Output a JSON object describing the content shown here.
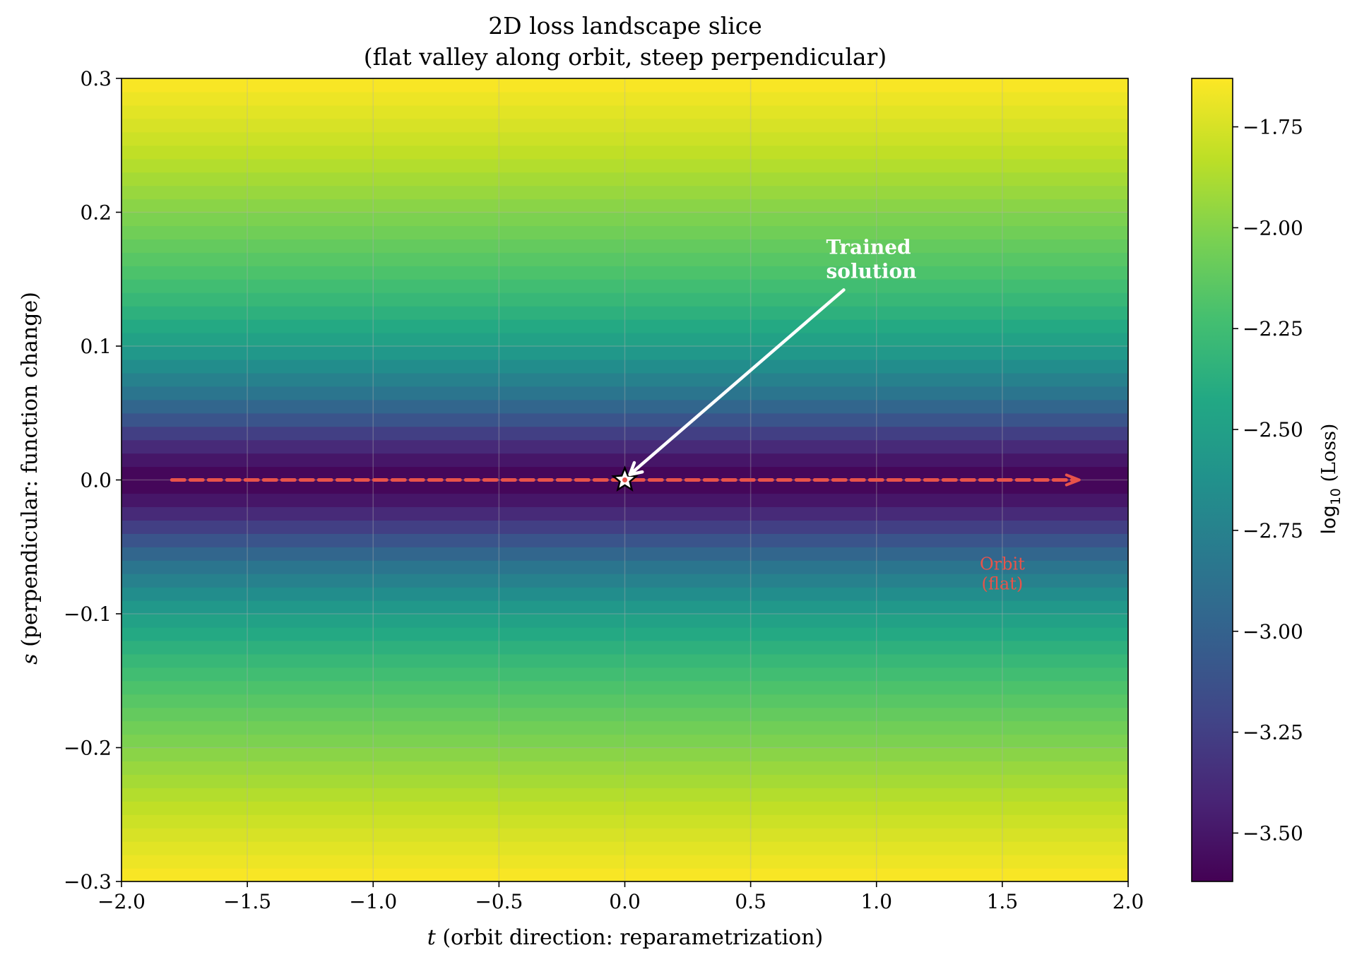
{
  "chart_data": {
    "type": "heatmap",
    "title": "2D loss landscape slice",
    "subtitle": "(flat valley along orbit, steep perpendicular)",
    "xlabel": {
      "var": "t",
      "text": " (orbit direction: reparametrization)"
    },
    "ylabel": {
      "var": "s",
      "text": " (perpendicular: function change)"
    },
    "xlim": [
      -2.0,
      2.0
    ],
    "ylim": [
      -0.3,
      0.3
    ],
    "xticks": [
      -2.0,
      -1.5,
      -1.0,
      -0.5,
      0.0,
      0.5,
      1.0,
      1.5,
      2.0
    ],
    "xtick_labels": [
      "−2.0",
      "−1.5",
      "−1.0",
      "−0.5",
      "0.0",
      "0.5",
      "1.0",
      "1.5",
      "2.0"
    ],
    "yticks": [
      -0.3,
      -0.2,
      -0.1,
      0.0,
      0.1,
      0.2,
      0.3
    ],
    "ytick_labels": [
      "−0.3",
      "−0.2",
      "−0.1",
      "0.0",
      "0.1",
      "0.2",
      "0.3"
    ],
    "grid": true,
    "colormap": "viridis",
    "colorbar": {
      "label_prefix": "log",
      "label_sub": "10",
      "label_suffix": " (Loss)",
      "range": [
        -3.62,
        -1.63
      ],
      "ticks": [
        -3.5,
        -3.25,
        -3.0,
        -2.75,
        -2.5,
        -2.25,
        -2.0,
        -1.75
      ],
      "tick_labels": [
        "−3.50",
        "−3.25",
        "−3.00",
        "−2.75",
        "−2.50",
        "−2.25",
        "−2.00",
        "−1.75"
      ]
    },
    "surface": {
      "depends_on": "s",
      "s_values": [
        0.0,
        0.01,
        0.02,
        0.03,
        0.04,
        0.05,
        0.06,
        0.08,
        0.1,
        0.12,
        0.15,
        0.2,
        0.25,
        0.3
      ],
      "log10_loss": [
        -3.62,
        -3.55,
        -3.45,
        -3.32,
        -3.18,
        -3.03,
        -2.9,
        -2.7,
        -2.52,
        -2.38,
        -2.22,
        -2.0,
        -1.8,
        -1.63
      ]
    },
    "orbit_line": {
      "t_start": -1.8,
      "t_end": 1.8,
      "s": 0.0,
      "color": "#e8534a",
      "style": "dashed-arrow"
    },
    "marker": {
      "t": 0.0,
      "s": 0.0,
      "shape": "star"
    },
    "annotations": [
      {
        "id": "trained",
        "lines": [
          "Trained",
          "solution"
        ],
        "t": 0.8,
        "s": 0.165,
        "color": "#ffffff",
        "bold": true,
        "arrow_to": {
          "t": 0.02,
          "s": 0.004
        },
        "arrow_from": {
          "t": 0.87,
          "s": 0.142
        }
      },
      {
        "id": "orbit",
        "lines": [
          "Orbit",
          "(flat)"
        ],
        "t": 1.5,
        "s": -0.07,
        "color": "#e8534a",
        "bold": false
      }
    ],
    "colors": {
      "orbit": "#e8534a",
      "annotation_text": "#ffffff",
      "grid": "#b0b0b0"
    }
  }
}
